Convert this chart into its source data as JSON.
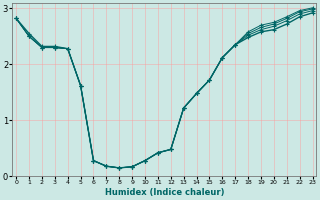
{
  "xlabel": "Humidex (Indice chaleur)",
  "background_color": "#cce8e4",
  "line_color": "#006666",
  "grid_color": "#ff9999",
  "xlim": [
    0,
    23
  ],
  "ylim": [
    0,
    3.1
  ],
  "yticks": [
    0,
    1,
    2,
    3
  ],
  "xticks": [
    0,
    1,
    2,
    3,
    4,
    5,
    6,
    7,
    8,
    9,
    10,
    11,
    12,
    13,
    14,
    15,
    16,
    17,
    18,
    19,
    20,
    21,
    22,
    23
  ],
  "curves": [
    [
      2.82,
      2.55,
      2.32,
      2.32,
      2.28,
      1.62,
      0.28,
      0.18,
      0.15,
      0.17,
      0.28,
      0.42,
      0.48,
      1.22,
      1.48,
      1.72,
      2.12,
      2.35,
      2.48,
      2.58,
      2.62,
      2.72,
      2.85,
      2.92
    ],
    [
      2.82,
      2.5,
      2.3,
      2.3,
      2.28,
      1.62,
      0.28,
      0.18,
      0.15,
      0.17,
      0.28,
      0.42,
      0.48,
      1.22,
      1.48,
      1.72,
      2.12,
      2.35,
      2.52,
      2.62,
      2.68,
      2.78,
      2.9,
      2.96
    ],
    [
      2.82,
      2.5,
      2.3,
      2.3,
      2.28,
      1.62,
      0.28,
      0.18,
      0.15,
      0.17,
      0.28,
      0.42,
      0.48,
      1.22,
      1.48,
      1.72,
      2.12,
      2.35,
      2.55,
      2.66,
      2.72,
      2.82,
      2.94,
      2.99
    ],
    [
      2.82,
      2.5,
      2.3,
      2.3,
      2.28,
      1.62,
      0.28,
      0.18,
      0.15,
      0.17,
      0.28,
      0.42,
      0.48,
      1.22,
      1.48,
      1.72,
      2.12,
      2.35,
      2.58,
      2.7,
      2.75,
      2.85,
      2.96,
      3.01
    ]
  ]
}
